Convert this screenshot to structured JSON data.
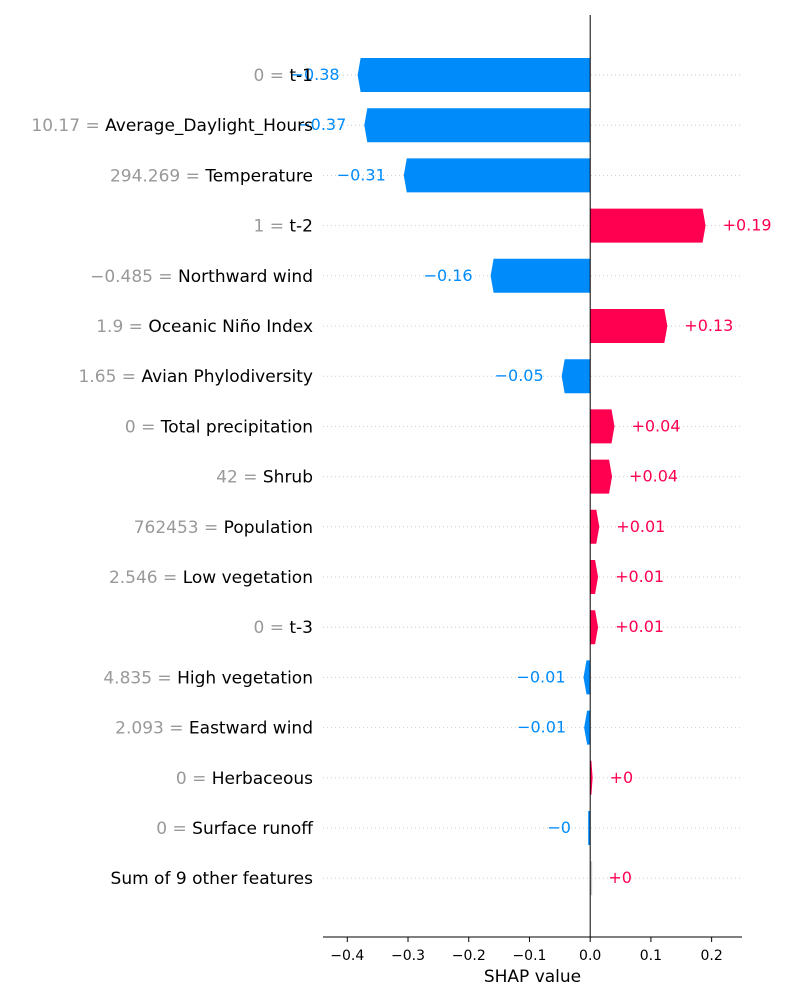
{
  "chart_data": {
    "type": "bar",
    "xlabel": "SHAP value",
    "xlim": [
      -0.44,
      0.25
    ],
    "xticks": [
      {
        "value": -0.4,
        "label": "−0.4"
      },
      {
        "value": -0.3,
        "label": "−0.3"
      },
      {
        "value": -0.2,
        "label": "−0.2"
      },
      {
        "value": -0.1,
        "label": "−0.1"
      },
      {
        "value": 0.0,
        "label": "0.0"
      },
      {
        "value": 0.1,
        "label": "0.1"
      },
      {
        "value": 0.2,
        "label": "0.2"
      }
    ],
    "colors": {
      "positive": "#ff0051",
      "negative": "#008bfb",
      "neutral": "#cccccc"
    },
    "rows": [
      {
        "value_text": "0 =",
        "feature": "t-1",
        "shap": -0.383,
        "label": "−0.38"
      },
      {
        "value_text": "10.17 =",
        "feature": "Average_Daylight_Hours",
        "shap": -0.372,
        "label": "−0.37"
      },
      {
        "value_text": "294.269 =",
        "feature": "Temperature",
        "shap": -0.307,
        "label": "−0.31"
      },
      {
        "value_text": "1 =",
        "feature": "t-2",
        "shap": 0.19,
        "label": "+0.19"
      },
      {
        "value_text": "−0.485 =",
        "feature": "Northward wind",
        "shap": -0.164,
        "label": "−0.16"
      },
      {
        "value_text": "1.9 =",
        "feature": "Oceanic Niño Index",
        "shap": 0.127,
        "label": "+0.13"
      },
      {
        "value_text": "1.65 =",
        "feature": "Avian Phylodiversity",
        "shap": -0.047,
        "label": "−0.05"
      },
      {
        "value_text": "0 =",
        "feature": "Total precipitation",
        "shap": 0.04,
        "label": "+0.04"
      },
      {
        "value_text": "42 =",
        "feature": "Shrub",
        "shap": 0.036,
        "label": "+0.04"
      },
      {
        "value_text": "762453 =",
        "feature": "Population",
        "shap": 0.015,
        "label": "+0.01"
      },
      {
        "value_text": "2.546 =",
        "feature": "Low vegetation",
        "shap": 0.013,
        "label": "+0.01"
      },
      {
        "value_text": "0 =",
        "feature": "t-3",
        "shap": 0.013,
        "label": "+0.01"
      },
      {
        "value_text": "4.835 =",
        "feature": "High vegetation",
        "shap": -0.011,
        "label": "−0.01"
      },
      {
        "value_text": "2.093 =",
        "feature": "Eastward wind",
        "shap": -0.01,
        "label": "−0.01"
      },
      {
        "value_text": "0 =",
        "feature": "Herbaceous",
        "shap": 0.004,
        "label": "+0"
      },
      {
        "value_text": "0 =",
        "feature": "Surface runoff",
        "shap": -0.002,
        "label": "−0"
      },
      {
        "value_text": "",
        "feature": "Sum of 9 other features",
        "shap": 0.002,
        "label": "+0"
      }
    ]
  }
}
